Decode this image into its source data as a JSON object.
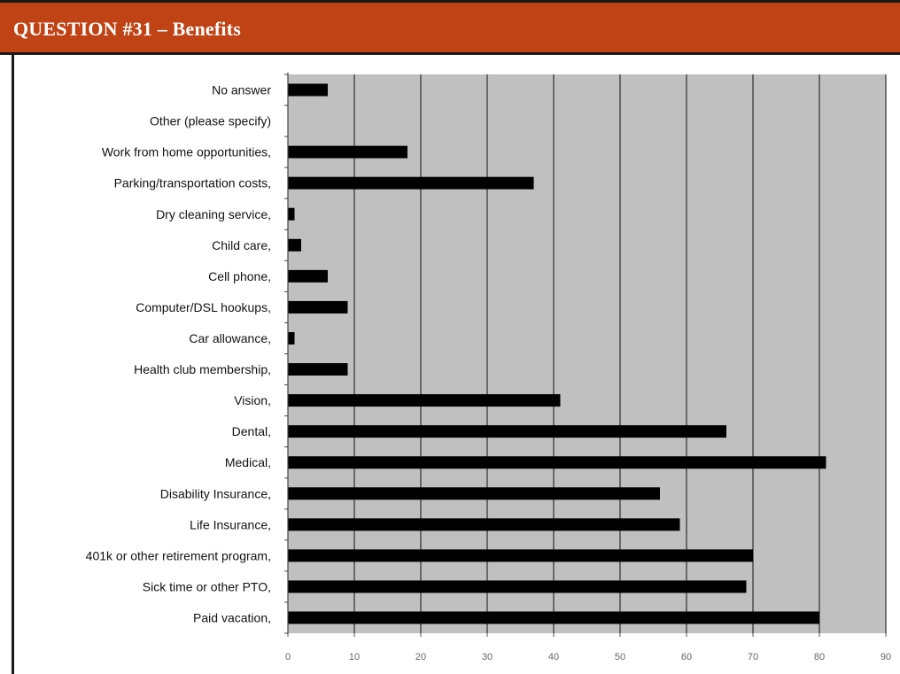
{
  "header": {
    "title": "QUESTION #31 – Benefits"
  },
  "chart_data": {
    "type": "bar",
    "orientation": "horizontal",
    "categories": [
      "No answer",
      "Other (please specify)",
      "Work from home opportunities,",
      "Parking/transportation costs,",
      "Dry cleaning service,",
      "Child care,",
      "Cell phone,",
      "Computer/DSL hookups,",
      "Car allowance,",
      "Health club membership,",
      "Vision,",
      "Dental,",
      "Medical,",
      "Disability Insurance,",
      "Life Insurance,",
      "401k or other retirement program,",
      "Sick time or other PTO,",
      "Paid vacation,"
    ],
    "values": [
      6,
      0,
      18,
      37,
      1,
      2,
      6,
      9,
      1,
      9,
      41,
      66,
      81,
      56,
      59,
      70,
      69,
      80
    ],
    "xlim": [
      0,
      90
    ],
    "xticks": [
      "0",
      "10",
      "20",
      "30",
      "40",
      "50",
      "60",
      "70",
      "80",
      "90"
    ],
    "grid": true,
    "legend": "none",
    "colors": {
      "plot_background": "#c0c0c0",
      "bar": "#000000",
      "gridline": "#3a3a3a",
      "header": "#bf4314"
    }
  }
}
